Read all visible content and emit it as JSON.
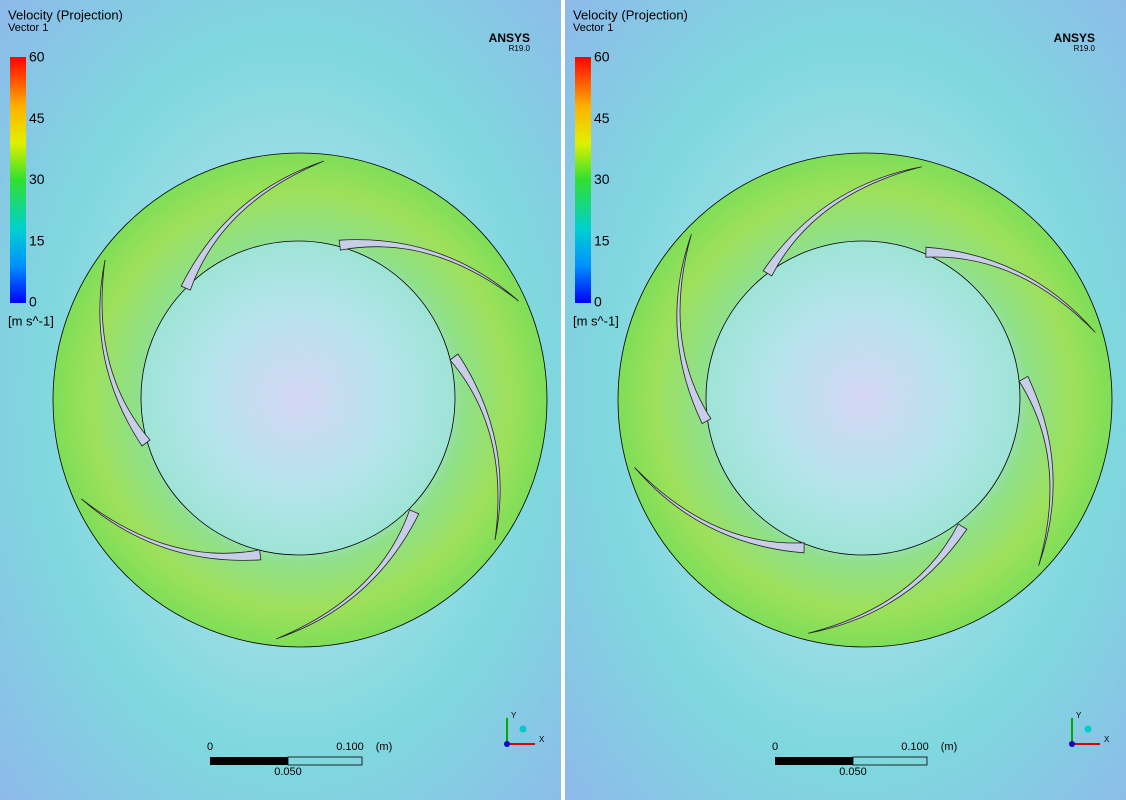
{
  "panels": [
    {
      "title": "Velocity (Projection)",
      "subtitle": "Vector 1",
      "legend": {
        "ticks": [
          60,
          45,
          30,
          15,
          0
        ],
        "unit": "[m s^-1]"
      },
      "brand": "ANSYS",
      "version": "R19.0",
      "scale_bar": {
        "start": "0",
        "end": "0.100",
        "unit": "(m)",
        "mid": "0.050"
      },
      "axes": {
        "y": "Y",
        "x": "X"
      }
    },
    {
      "title": "Velocity (Projection)",
      "subtitle": "Vector 1",
      "legend": {
        "ticks": [
          60,
          45,
          30,
          15,
          0
        ],
        "unit": "[m s^-1]"
      },
      "brand": "ANSYS",
      "version": "R19.0",
      "scale_bar": {
        "start": "0",
        "end": "0.100",
        "unit": "(m)",
        "mid": "0.050"
      },
      "axes": {
        "y": "Y",
        "x": "X"
      }
    }
  ]
}
